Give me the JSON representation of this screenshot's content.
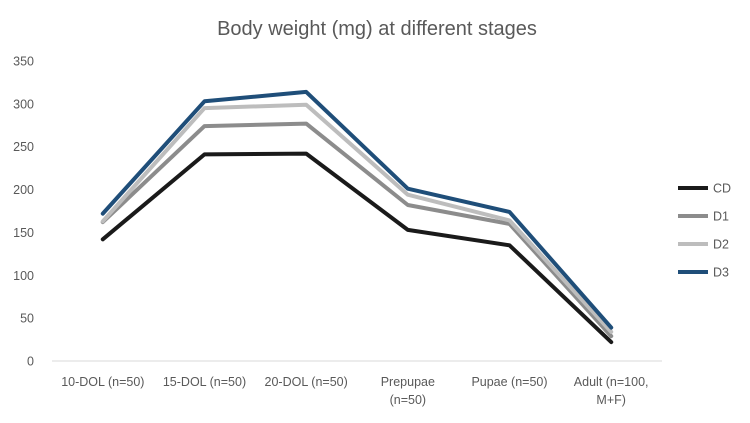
{
  "chart_data": {
    "type": "line",
    "title": "Body weight (mg) at different stages",
    "xlabel": "",
    "ylabel": "",
    "ylim": [
      0,
      350
    ],
    "yticks": [
      0,
      50,
      100,
      150,
      200,
      250,
      300,
      350
    ],
    "grid": false,
    "legend_position": "right",
    "categories": [
      [
        "10-DOL (n=50)"
      ],
      [
        "15-DOL (n=50)"
      ],
      [
        "20-DOL (n=50)"
      ],
      [
        "Prepupae",
        "(n=50)"
      ],
      [
        "Pupae (n=50)"
      ],
      [
        "Adult (n=100,",
        "M+F)"
      ]
    ],
    "series": [
      {
        "name": "CD",
        "color": "#1a1a1a",
        "values": [
          142,
          241,
          242,
          153,
          135,
          22
        ]
      },
      {
        "name": "D1",
        "color": "#8c8c8c",
        "values": [
          162,
          274,
          277,
          182,
          160,
          29
        ]
      },
      {
        "name": "D2",
        "color": "#bdbdbd",
        "values": [
          163,
          295,
          299,
          194,
          164,
          34
        ]
      },
      {
        "name": "D3",
        "color": "#1f4e79",
        "values": [
          172,
          303,
          314,
          201,
          174,
          39
        ]
      }
    ]
  }
}
